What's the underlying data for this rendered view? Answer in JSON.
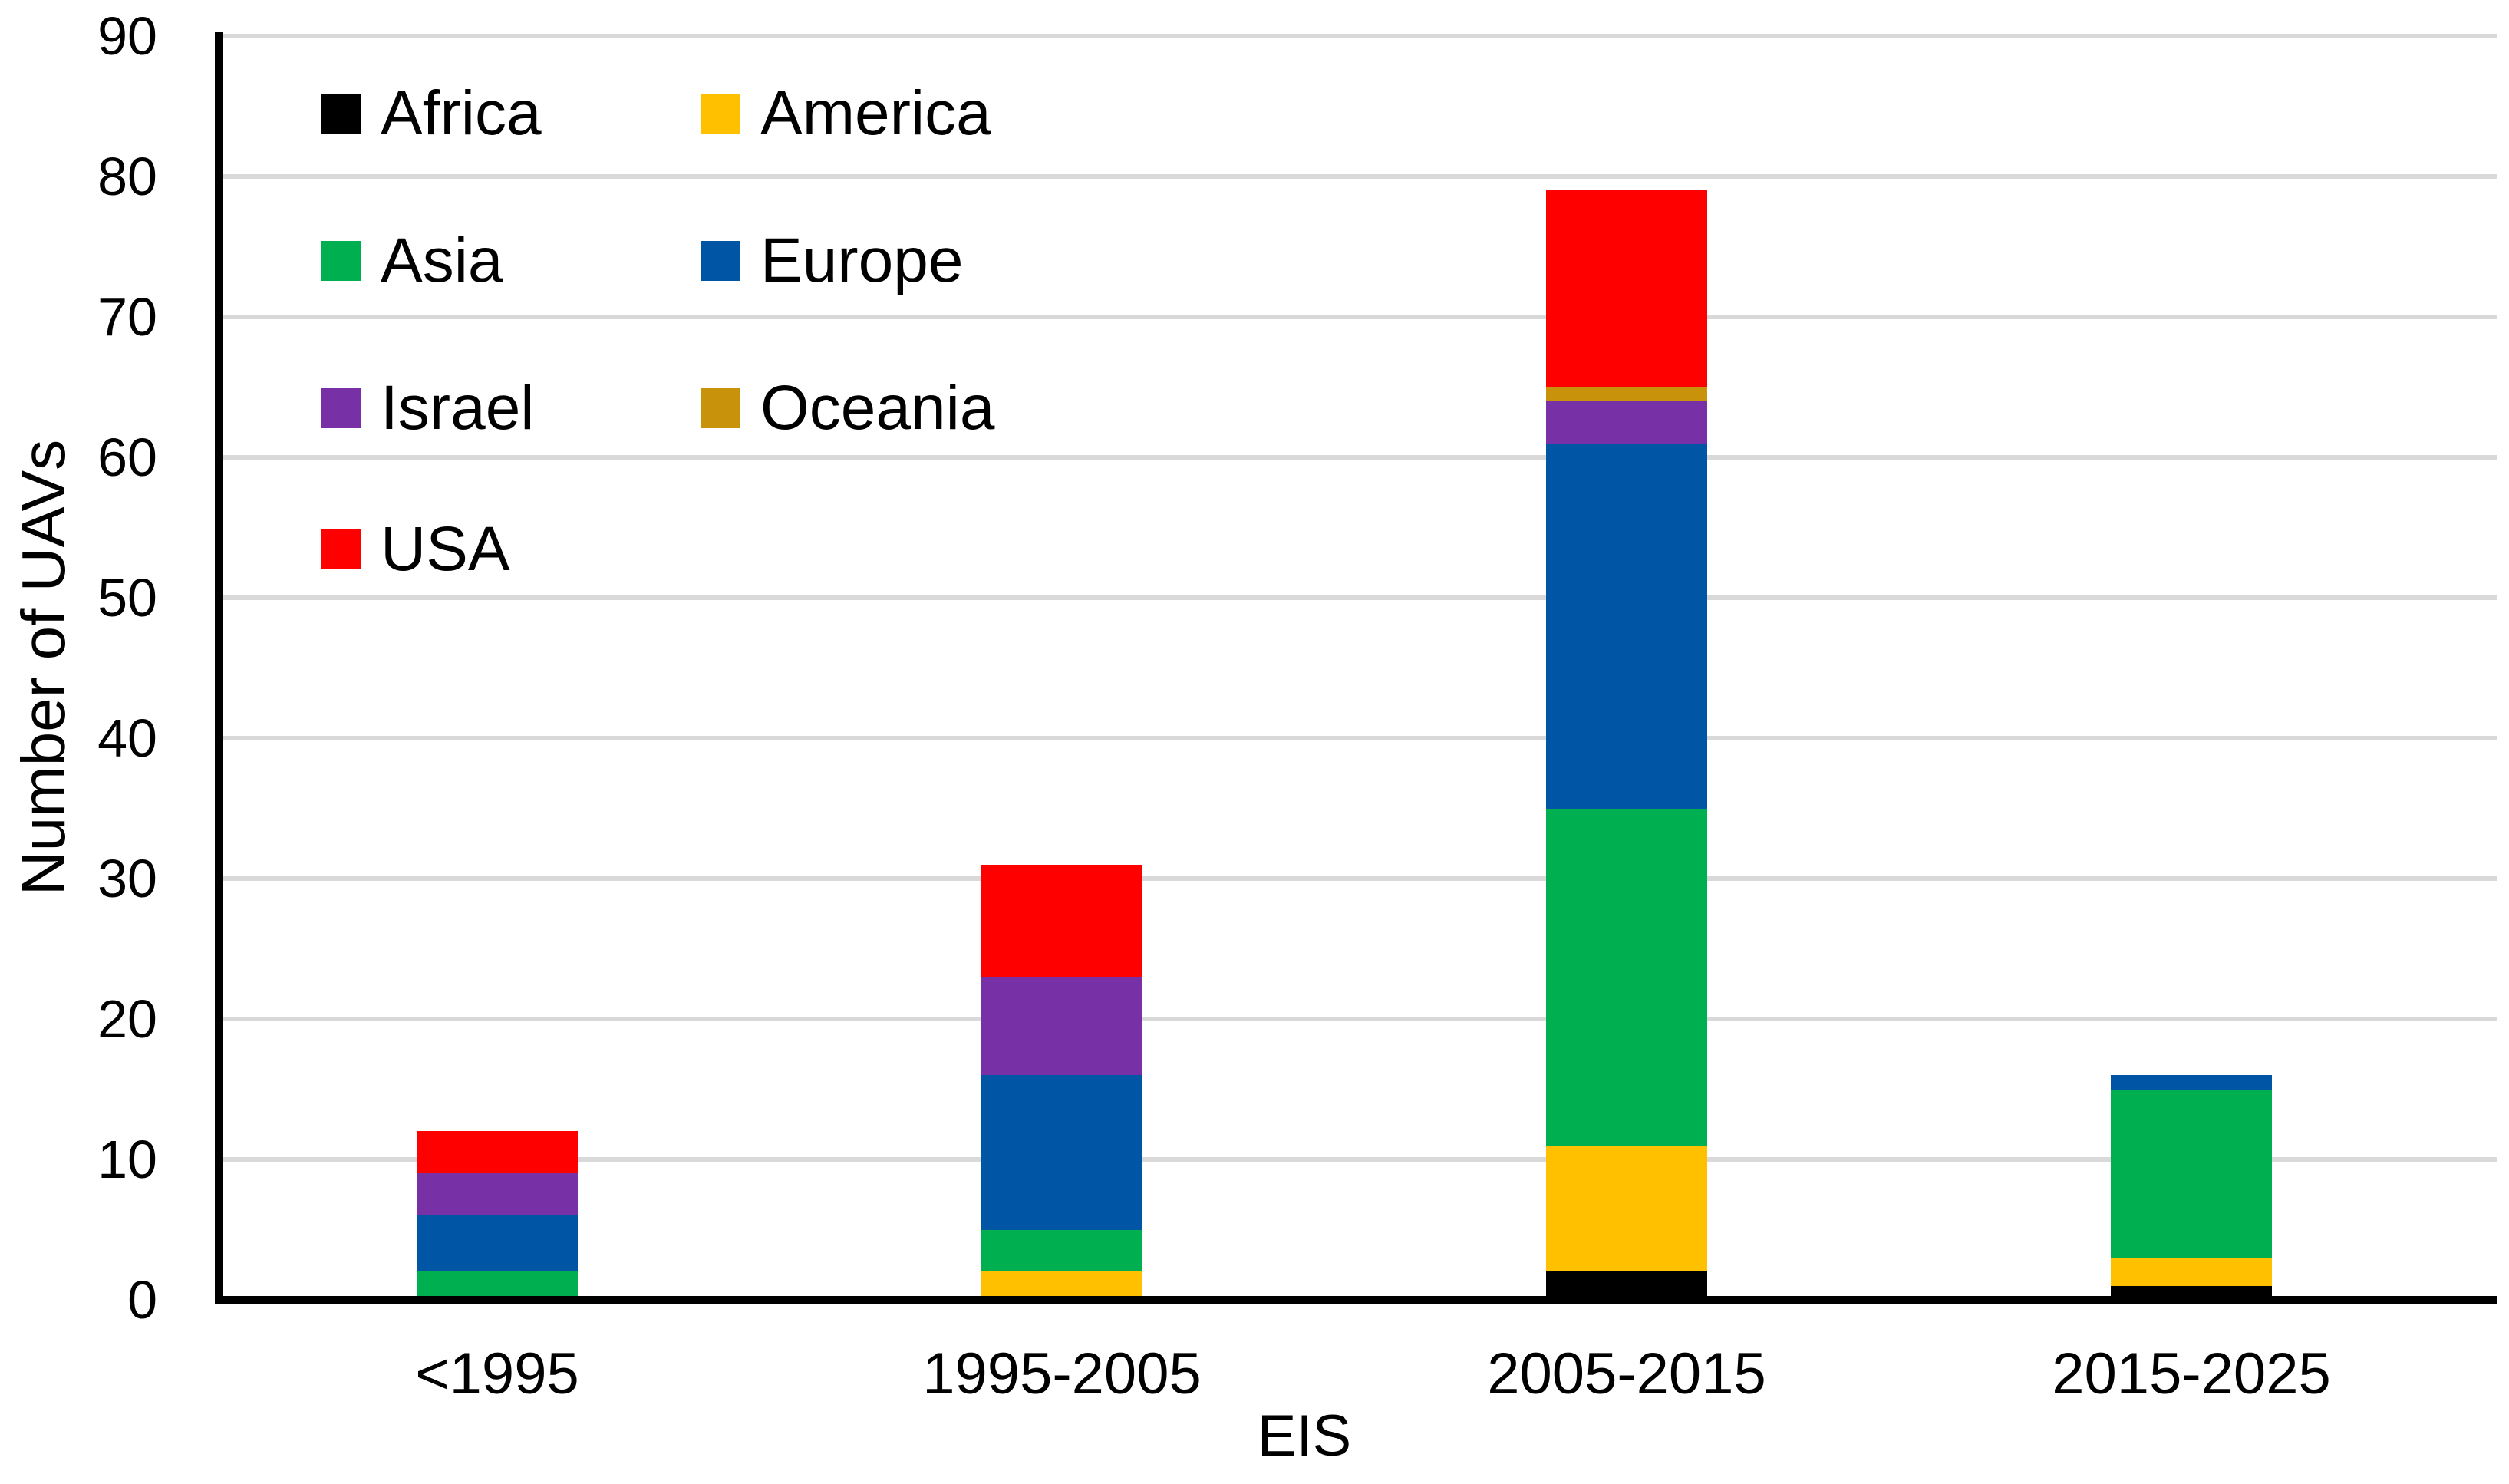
{
  "chart_data": {
    "type": "bar",
    "stacked": true,
    "xlabel": "EIS",
    "ylabel": "Number of UAVs",
    "categories": [
      "<1995",
      "1995-2005",
      "2005-2015",
      "2015-2025"
    ],
    "series": [
      {
        "name": "Africa",
        "color": "#000000",
        "values": [
          0,
          0,
          2,
          1
        ]
      },
      {
        "name": "America",
        "color": "#FFC000",
        "values": [
          0,
          2,
          9,
          2
        ]
      },
      {
        "name": "Asia",
        "color": "#00B050",
        "values": [
          2,
          3,
          24,
          12
        ]
      },
      {
        "name": "Europe",
        "color": "#0056A4",
        "values": [
          4,
          11,
          26,
          1
        ]
      },
      {
        "name": "Israel",
        "color": "#7830A6",
        "values": [
          3,
          7,
          3,
          0
        ]
      },
      {
        "name": "Oceania",
        "color": "#C8930B",
        "values": [
          0,
          0,
          1,
          0
        ]
      },
      {
        "name": "USA",
        "color": "#FF0000",
        "values": [
          3,
          8,
          14,
          0
        ]
      }
    ],
    "totals": [
      12,
      31,
      79,
      16
    ],
    "ylim": [
      0,
      90
    ],
    "yticks": [
      0,
      10,
      20,
      30,
      40,
      50,
      60,
      70,
      80,
      90
    ],
    "grid": true,
    "gridline_color": "#D9D9D9",
    "axis_color": "#000000",
    "legend_position": "top-left-inside",
    "legend_columns": 2
  }
}
